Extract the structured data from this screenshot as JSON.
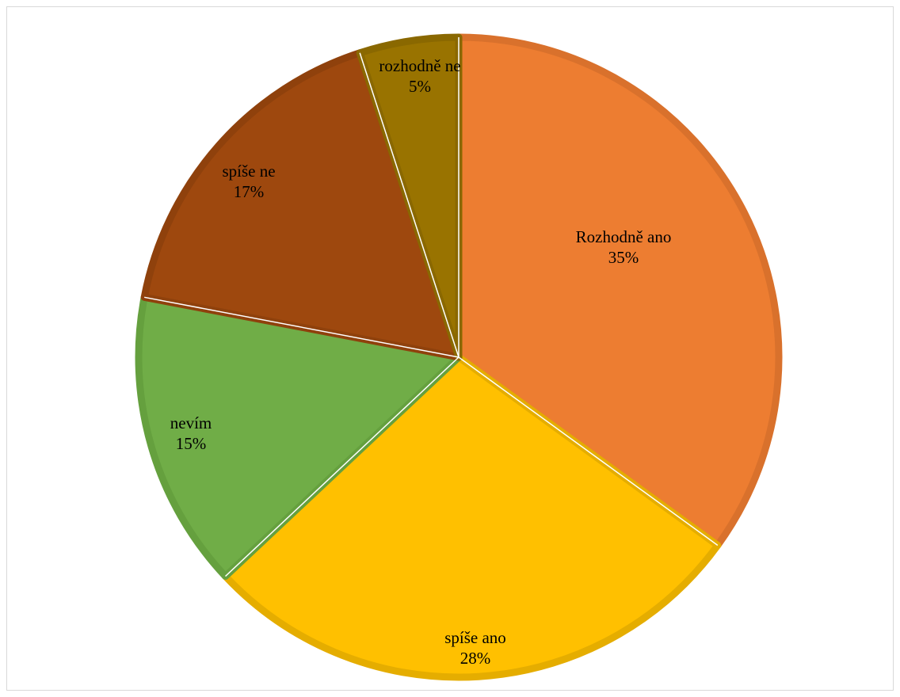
{
  "chart_data": {
    "type": "pie",
    "slices": [
      {
        "label": "Rozhodně ano",
        "value": 35,
        "display": "35%",
        "color": "#ED7D31",
        "stroke": "#D9712C"
      },
      {
        "label": "spíše ano",
        "value": 28,
        "display": "28%",
        "color": "#FFC000",
        "stroke": "#E5AD00"
      },
      {
        "label": "nevím",
        "value": 15,
        "display": "15%",
        "color": "#70AD47",
        "stroke": "#65A03E"
      },
      {
        "label": "spíše ne",
        "value": 17,
        "display": "17%",
        "color": "#9E480E",
        "stroke": "#8F410C"
      },
      {
        "label": "rozhodně ne",
        "value": 5,
        "display": "5%",
        "color": "#997300",
        "stroke": "#8A6800"
      }
    ],
    "title": "",
    "legend": "none",
    "data_labels": "category name and percentage, inside slices"
  }
}
